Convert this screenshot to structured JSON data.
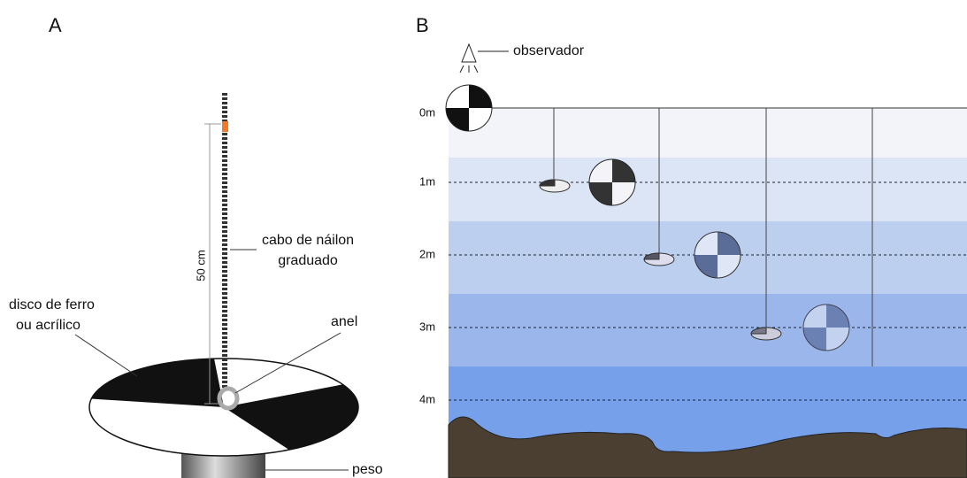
{
  "panel_a": {
    "label": "A",
    "rope_label": [
      "cabo de náilon",
      "graduado"
    ],
    "length_label": "50 cm",
    "disk_label": [
      "disco de ferro",
      "ou acrílico"
    ],
    "ring_label": "anel",
    "weight_label": "peso"
  },
  "panel_b": {
    "label": "B",
    "observer_label": "observador",
    "depth_labels": [
      "0m",
      "1m",
      "2m",
      "3m",
      "4m"
    ]
  }
}
